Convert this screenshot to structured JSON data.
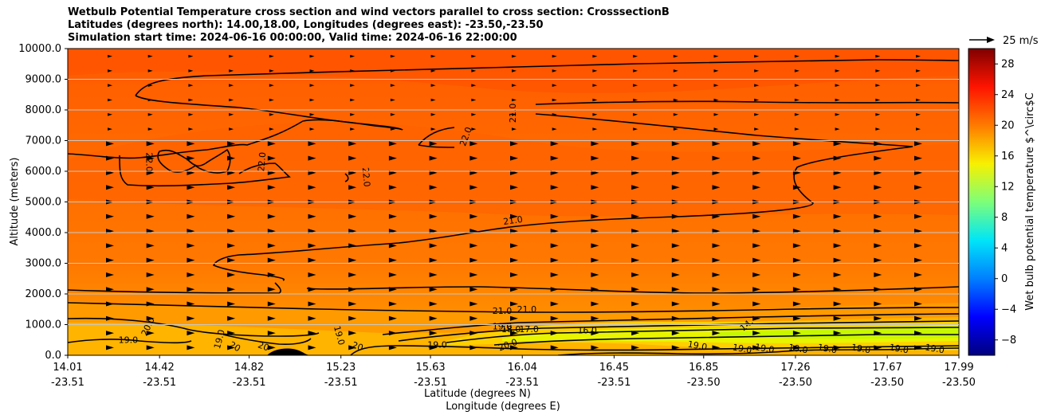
{
  "chart_data": {
    "type": "cross-section",
    "title_lines": [
      "Wetbulb Potential Temperature cross section and wind vectors parallel to cross section: CrosssectionB",
      "Latitudes (degrees north): 14.00,18.00, Longitudes (degrees east): -23.50,-23.50",
      "Simulation start time: 2024-06-16 00:00:00, Valid time: 2024-06-16 22:00:00"
    ],
    "ylabel": "Altitude (meters)",
    "xlabel_line1": "Latitude (degrees N)",
    "xlabel_line2": "Longitude (degrees E)",
    "ylim": [
      0,
      10000
    ],
    "yticks": [
      0,
      1000,
      2000,
      3000,
      4000,
      5000,
      6000,
      7000,
      8000,
      9000,
      10000
    ],
    "ytick_labels": [
      "0.0",
      "1000.0",
      "2000.0",
      "3000.0",
      "4000.0",
      "5000.0",
      "6000.0",
      "7000.0",
      "8000.0",
      "9000.0",
      "10000.0"
    ],
    "xlim": [
      14.01,
      17.99
    ],
    "xticks": [
      {
        "lat": "14.01",
        "lon": "-23.51"
      },
      {
        "lat": "14.42",
        "lon": "-23.51"
      },
      {
        "lat": "14.82",
        "lon": "-23.51"
      },
      {
        "lat": "15.23",
        "lon": "-23.51"
      },
      {
        "lat": "15.63",
        "lon": "-23.51"
      },
      {
        "lat": "16.04",
        "lon": "-23.51"
      },
      {
        "lat": "16.45",
        "lon": "-23.51"
      },
      {
        "lat": "16.85",
        "lon": "-23.50"
      },
      {
        "lat": "17.26",
        "lon": "-23.50"
      },
      {
        "lat": "17.67",
        "lon": "-23.50"
      },
      {
        "lat": "17.99",
        "lon": "-23.50"
      }
    ],
    "colorbar": {
      "label": "Wet bulb potential temperature $^\\circ$C",
      "range": [
        -10,
        30
      ],
      "ticks": [
        -8,
        -4,
        0,
        4,
        8,
        12,
        16,
        20,
        24,
        28
      ],
      "tick_labels": [
        "−8",
        "−4",
        "0",
        "4",
        "8",
        "12",
        "16",
        "20",
        "24",
        "28"
      ]
    },
    "wind_key": {
      "label": "25 m/s",
      "value": 25
    },
    "contour_labels": [
      {
        "text": "22.0",
        "x": 14.36,
        "z": 6300,
        "rot": 90
      },
      {
        "text": "22.0",
        "x": 14.89,
        "z": 6300,
        "rot": -85
      },
      {
        "text": "22.0",
        "x": 15.33,
        "z": 5800,
        "rot": 85
      },
      {
        "text": "22.0",
        "x": 15.8,
        "z": 7100,
        "rot": -70
      },
      {
        "text": "21.0",
        "x": 16.01,
        "z": 7900,
        "rot": -90
      },
      {
        "text": "21.0",
        "x": 16.0,
        "z": 4300,
        "rot": -8
      },
      {
        "text": "21.0",
        "x": 15.95,
        "z": 1350,
        "rot": 0
      },
      {
        "text": "21.0",
        "x": 16.06,
        "z": 1400,
        "rot": 0
      },
      {
        "text": "20.0",
        "x": 14.38,
        "z": 900,
        "rot": -65
      },
      {
        "text": "19.0",
        "x": 14.28,
        "z": 400,
        "rot": 0
      },
      {
        "text": "19.0",
        "x": 14.7,
        "z": 500,
        "rot": -75
      },
      {
        "text": "19.0",
        "x": 15.21,
        "z": 620,
        "rot": 75
      },
      {
        "text": "20",
        "x": 14.75,
        "z": 200,
        "rot": 30
      },
      {
        "text": "20",
        "x": 14.88,
        "z": 200,
        "rot": 20
      },
      {
        "text": "20",
        "x": 15.3,
        "z": 200,
        "rot": 20
      },
      {
        "text": "19.0",
        "x": 15.95,
        "z": 850,
        "rot": 0
      },
      {
        "text": "18.0",
        "x": 15.99,
        "z": 750,
        "rot": 0
      },
      {
        "text": "17.0",
        "x": 16.07,
        "z": 750,
        "rot": 0
      },
      {
        "text": "16.0",
        "x": 16.33,
        "z": 720,
        "rot": 0
      },
      {
        "text": "14.",
        "x": 17.05,
        "z": 920,
        "rot": -40
      },
      {
        "text": "20.0",
        "x": 15.98,
        "z": 250,
        "rot": -20
      },
      {
        "text": "19.0",
        "x": 15.66,
        "z": 250,
        "rot": 0
      },
      {
        "text": "19.0",
        "x": 16.82,
        "z": 220,
        "rot": 10
      },
      {
        "text": "19.0",
        "x": 17.02,
        "z": 120,
        "rot": 10
      },
      {
        "text": "19.0",
        "x": 17.12,
        "z": 130,
        "rot": 10
      },
      {
        "text": "19.0",
        "x": 17.27,
        "z": 120,
        "rot": 10
      },
      {
        "text": "19.0",
        "x": 17.4,
        "z": 120,
        "rot": 10
      },
      {
        "text": "19.0",
        "x": 17.55,
        "z": 120,
        "rot": 10
      },
      {
        "text": "19.0",
        "x": 17.72,
        "z": 120,
        "rot": 10
      },
      {
        "text": "19.0",
        "x": 17.88,
        "z": 120,
        "rot": 10
      }
    ]
  }
}
